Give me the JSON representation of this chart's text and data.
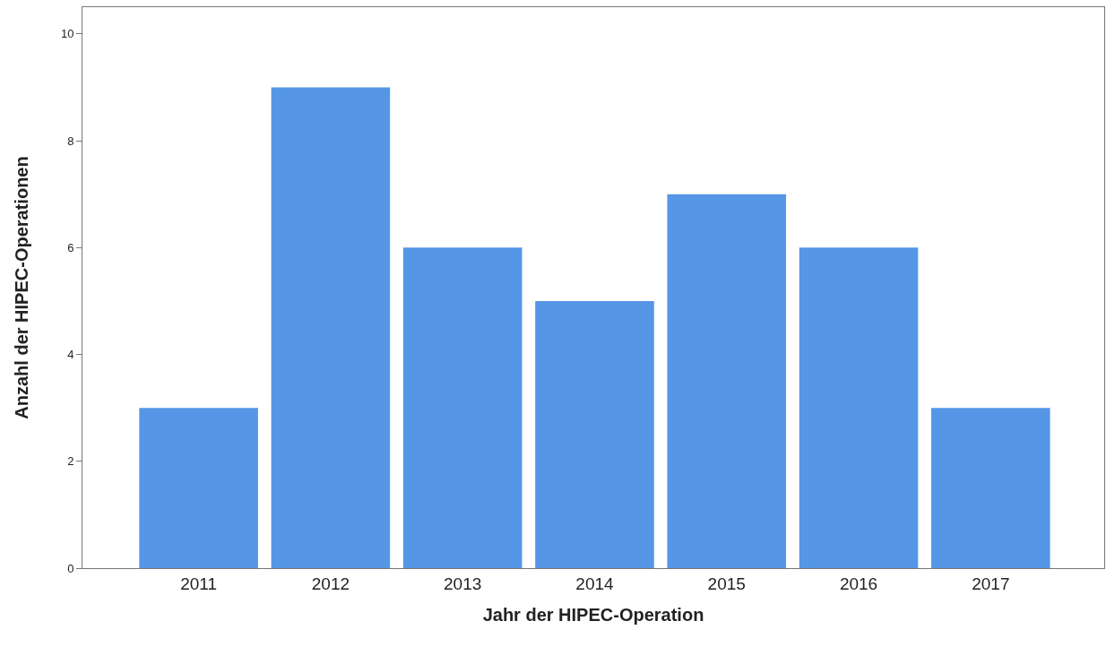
{
  "chart_data": {
    "type": "bar",
    "xlabel": "Jahr der HIPEC-Operation",
    "ylabel": "Anzahl der HIPEC-Operationen",
    "categories": [
      "2011",
      "2012",
      "2013",
      "2014",
      "2015",
      "2016",
      "2017"
    ],
    "values": [
      3,
      9,
      6,
      5,
      7,
      6,
      3
    ],
    "color": "#5596e6",
    "ylim": [
      0,
      10.5
    ],
    "yticks": [
      0,
      2,
      4,
      6,
      8,
      10
    ]
  }
}
